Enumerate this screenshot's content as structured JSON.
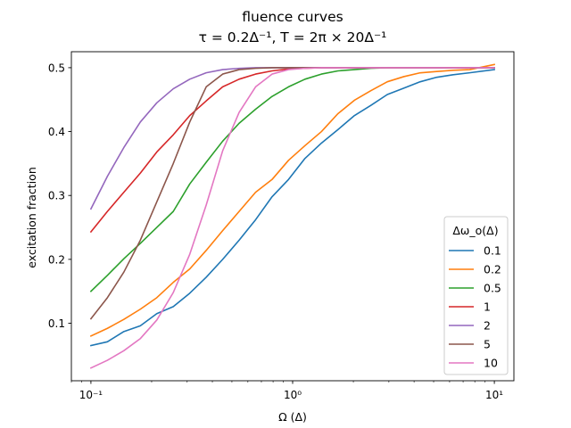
{
  "chart_data": {
    "type": "line",
    "title": "fluence curves",
    "subtitle": "τ = 0.2Δ⁻¹, T = 2π × 20Δ⁻¹",
    "xlabel": "Ω (Δ)",
    "ylabel": "excitation fraction",
    "xscale": "log",
    "xlim": [
      0.08,
      12.5
    ],
    "ylim": [
      0.01,
      0.525
    ],
    "x_ticks": [
      0.1,
      1,
      10
    ],
    "x_tick_labels": [
      "10⁻¹",
      "10⁰",
      "10¹"
    ],
    "y_ticks": [
      0.1,
      0.2,
      0.3,
      0.4,
      0.5
    ],
    "y_tick_labels": [
      "0.1",
      "0.2",
      "0.3",
      "0.4",
      "0.5"
    ],
    "grid": false,
    "legend": {
      "title": "Δω_o(Δ)",
      "placement": "lower-right"
    },
    "x": [
      0.1,
      0.1207,
      0.1456,
      0.1758,
      0.2121,
      0.256,
      0.309,
      0.3728,
      0.45,
      0.5429,
      0.6551,
      0.7906,
      0.954,
      1.1514,
      1.3895,
      1.6768,
      2.0236,
      2.4421,
      2.9471,
      3.5565,
      4.2919,
      5.1795,
      6.2506,
      7.5431,
      10.0
    ],
    "series": [
      {
        "name": "0.1",
        "color": "#1f77b4",
        "values": [
          0.065,
          0.071,
          0.087,
          0.096,
          0.115,
          0.126,
          0.147,
          0.172,
          0.2,
          0.23,
          0.262,
          0.298,
          0.325,
          0.358,
          0.382,
          0.403,
          0.425,
          0.441,
          0.458,
          0.468,
          0.478,
          0.485,
          0.489,
          0.492,
          0.497
        ]
      },
      {
        "name": "0.2",
        "color": "#ff7f0e",
        "values": [
          0.08,
          0.092,
          0.106,
          0.122,
          0.14,
          0.164,
          0.185,
          0.214,
          0.245,
          0.275,
          0.305,
          0.325,
          0.355,
          0.378,
          0.4,
          0.428,
          0.449,
          0.464,
          0.478,
          0.486,
          0.492,
          0.494,
          0.496,
          0.497,
          0.505
        ]
      },
      {
        "name": "0.5",
        "color": "#2ca02c",
        "values": [
          0.15,
          0.175,
          0.201,
          0.225,
          0.25,
          0.275,
          0.318,
          0.352,
          0.385,
          0.413,
          0.435,
          0.455,
          0.47,
          0.482,
          0.49,
          0.495,
          0.497,
          0.499,
          0.5,
          0.5,
          0.5,
          0.5,
          0.5,
          0.5,
          0.5
        ]
      },
      {
        "name": "1",
        "color": "#d62728",
        "values": [
          0.243,
          0.275,
          0.305,
          0.335,
          0.368,
          0.395,
          0.425,
          0.448,
          0.47,
          0.482,
          0.49,
          0.495,
          0.498,
          0.499,
          0.5,
          0.5,
          0.5,
          0.5,
          0.5,
          0.5,
          0.5,
          0.5,
          0.5,
          0.5,
          0.5
        ]
      },
      {
        "name": "2",
        "color": "#9467bd",
        "values": [
          0.279,
          0.33,
          0.375,
          0.415,
          0.445,
          0.467,
          0.482,
          0.492,
          0.497,
          0.499,
          0.5,
          0.5,
          0.5,
          0.5,
          0.5,
          0.5,
          0.5,
          0.5,
          0.5,
          0.5,
          0.5,
          0.5,
          0.5,
          0.5,
          0.5
        ]
      },
      {
        "name": "5",
        "color": "#8c564b",
        "values": [
          0.107,
          0.14,
          0.18,
          0.23,
          0.29,
          0.35,
          0.415,
          0.47,
          0.49,
          0.497,
          0.499,
          0.5,
          0.5,
          0.5,
          0.5,
          0.5,
          0.5,
          0.5,
          0.5,
          0.5,
          0.5,
          0.5,
          0.5,
          0.5,
          0.5
        ]
      },
      {
        "name": "10",
        "color": "#e377c2",
        "values": [
          0.03,
          0.042,
          0.057,
          0.076,
          0.105,
          0.148,
          0.208,
          0.285,
          0.37,
          0.43,
          0.47,
          0.49,
          0.497,
          0.499,
          0.5,
          0.5,
          0.5,
          0.5,
          0.5,
          0.5,
          0.5,
          0.5,
          0.5,
          0.5,
          0.5
        ]
      }
    ]
  }
}
